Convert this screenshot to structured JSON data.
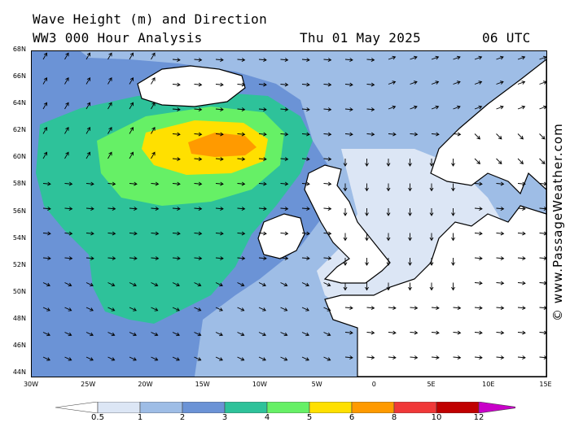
{
  "header": {
    "title_line1": "Wave Height (m) and Direction",
    "model_line": "WW3 000 Hour Analysis",
    "date": "Thu 01 May 2025",
    "time": "06 UTC"
  },
  "watermark": "© www.PassageWeather.com",
  "map": {
    "lat_labels": [
      "68N",
      "66N",
      "64N",
      "62N",
      "60N",
      "58N",
      "56N",
      "54N",
      "52N",
      "50N",
      "48N",
      "46N",
      "44N"
    ],
    "lon_labels": [
      "30W",
      "25W",
      "20W",
      "15W",
      "10W",
      "5W",
      "0",
      "5E",
      "10E",
      "15E"
    ],
    "lat_range": [
      43,
      68
    ],
    "lon_range": [
      -30,
      15
    ],
    "land_color": "#ffffff",
    "arrow_direction_summary": "northeast in north-west, east across central Atlantic, south-east near Biscay, south over North Sea"
  },
  "legend": {
    "labels": [
      "0.5",
      "1",
      "2",
      "3",
      "4",
      "5",
      "6",
      "8",
      "10",
      "12"
    ],
    "colors": [
      "#ffffff",
      "#dce6f5",
      "#9ebde6",
      "#6b93d6",
      "#2ec29a",
      "#66f066",
      "#ffe000",
      "#ff9a00",
      "#f03838",
      "#c00000",
      "#c800c8"
    ]
  }
}
